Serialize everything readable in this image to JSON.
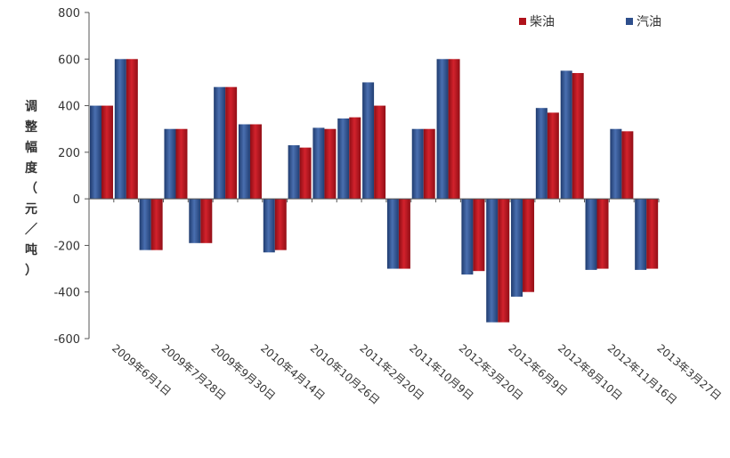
{
  "chart_data": {
    "type": "bar",
    "ylabel": "调整幅度（元／吨）",
    "ylim": [
      -600,
      800
    ],
    "yticks": [
      800,
      600,
      400,
      200,
      0,
      -200,
      -400,
      -600
    ],
    "grid": false,
    "legend_position": "top-right",
    "categories": [
      "2009年6月1日",
      "",
      "2009年7月28日",
      "",
      "2009年9月30日",
      "",
      "2010年4月14日",
      "",
      "2010年10月26日",
      "",
      "2011年2月20日",
      "",
      "2011年10月9日",
      "",
      "2012年3月20日",
      "",
      "2012年6月9日",
      "",
      "2012年8月10日",
      "",
      "2012年11月16日",
      "",
      "2013年3月27日"
    ],
    "series": [
      {
        "name": "汽油",
        "color": "#2e4f8c",
        "values": [
          400,
          600,
          -220,
          300,
          -190,
          480,
          320,
          -230,
          230,
          305,
          345,
          500,
          -300,
          300,
          600,
          -325,
          -530,
          -420,
          390,
          550,
          -305,
          300,
          -305
        ]
      },
      {
        "name": "柴油",
        "color": "#b0121b",
        "values": [
          400,
          600,
          -220,
          300,
          -190,
          480,
          320,
          -220,
          220,
          300,
          350,
          400,
          -300,
          300,
          600,
          -310,
          -530,
          -400,
          370,
          540,
          -300,
          290,
          -300
        ]
      }
    ]
  }
}
